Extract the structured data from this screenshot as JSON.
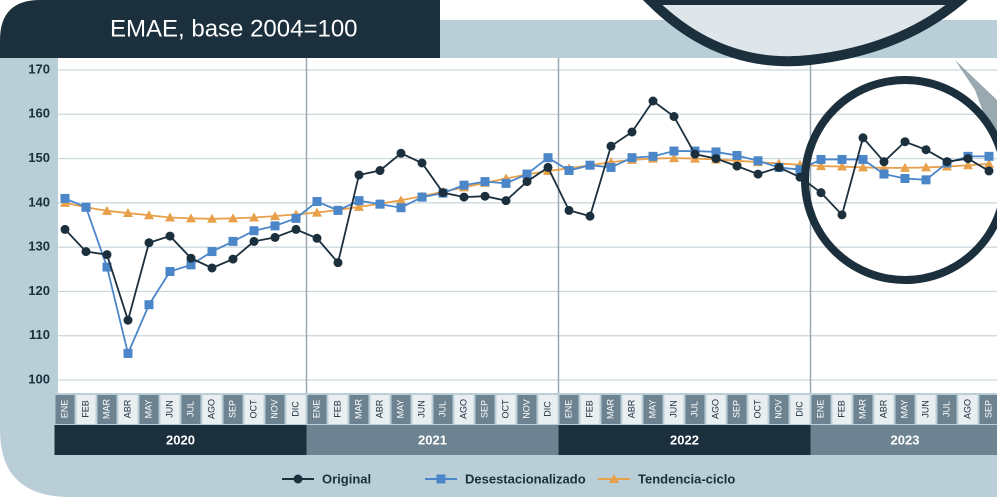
{
  "chart_data": {
    "type": "line",
    "title": "EMAE, base 2004=100",
    "categories": [
      "ENE",
      "FEB",
      "MAR",
      "ABR",
      "MAY",
      "JUN",
      "JUL",
      "AGO",
      "SEP",
      "OCT",
      "NOV",
      "DIC",
      "ENE",
      "FEB",
      "MAR",
      "ABR",
      "MAY",
      "JUN",
      "JUL",
      "AGO",
      "SEP",
      "OCT",
      "NOV",
      "DIC",
      "ENE",
      "FEB",
      "MAR",
      "ABR",
      "MAY",
      "JUN",
      "JUL",
      "AGO",
      "SEP",
      "OCT",
      "NOV",
      "DIC",
      "ENE",
      "FEB",
      "MAR",
      "ABR",
      "MAY",
      "JUN",
      "JUL",
      "AGO",
      "SEP"
    ],
    "years": [
      "2020",
      "2021",
      "2022",
      "2023"
    ],
    "series": [
      {
        "name": "Original",
        "color": "#1b2f3d",
        "marker": "circle",
        "values": [
          134,
          129,
          128.3,
          113.5,
          131,
          132.5,
          127.5,
          125.3,
          127.3,
          131.3,
          132.2,
          134,
          132,
          126.5,
          146.3,
          147.3,
          151.2,
          149,
          142.3,
          141.3,
          141.5,
          140.5,
          144.8,
          148,
          138.3,
          137,
          152.8,
          156,
          163,
          159.5,
          151,
          150,
          148.3,
          146.5,
          148,
          145.8,
          142.3,
          137.3,
          154.7,
          149.3,
          153.8,
          152,
          149.3,
          150,
          147.2
        ]
      },
      {
        "name": "Desestacionalizado",
        "color": "#4a86c8",
        "marker": "square",
        "values": [
          141,
          139,
          125.5,
          106,
          117,
          124.5,
          126,
          129,
          131.3,
          133.7,
          134.8,
          136.5,
          140.3,
          138.3,
          140.5,
          139.7,
          138.9,
          141.3,
          142.2,
          144,
          144.8,
          144.4,
          146.5,
          150.2,
          147.3,
          148.5,
          148,
          150.2,
          150.5,
          151.7,
          151.7,
          151.5,
          150.7,
          149.5,
          148,
          147.5,
          149.8,
          149.8,
          149.8,
          146.5,
          145.5,
          145.2,
          149,
          150.5,
          150.5
        ]
      },
      {
        "name": "Tendencia-ciclo",
        "color": "#e8a04a",
        "marker": "triangle",
        "values": [
          140,
          139,
          138.2,
          137.7,
          137.2,
          136.7,
          136.5,
          136.4,
          136.5,
          136.7,
          137,
          137.4,
          137.8,
          138.4,
          139.1,
          139.8,
          140.6,
          141.5,
          142.5,
          143.5,
          144.5,
          145.5,
          146.4,
          147.2,
          147.8,
          148.5,
          149.2,
          149.7,
          150,
          150.1,
          150,
          149.8,
          149.5,
          149.2,
          148.9,
          148.6,
          148.3,
          148.2,
          148,
          147.9,
          147.9,
          148,
          148.2,
          148.5,
          148.8
        ]
      }
    ],
    "ylim": [
      100,
      170
    ],
    "yticks": [
      100,
      110,
      120,
      130,
      140,
      150,
      160,
      170
    ],
    "grid": true
  }
}
